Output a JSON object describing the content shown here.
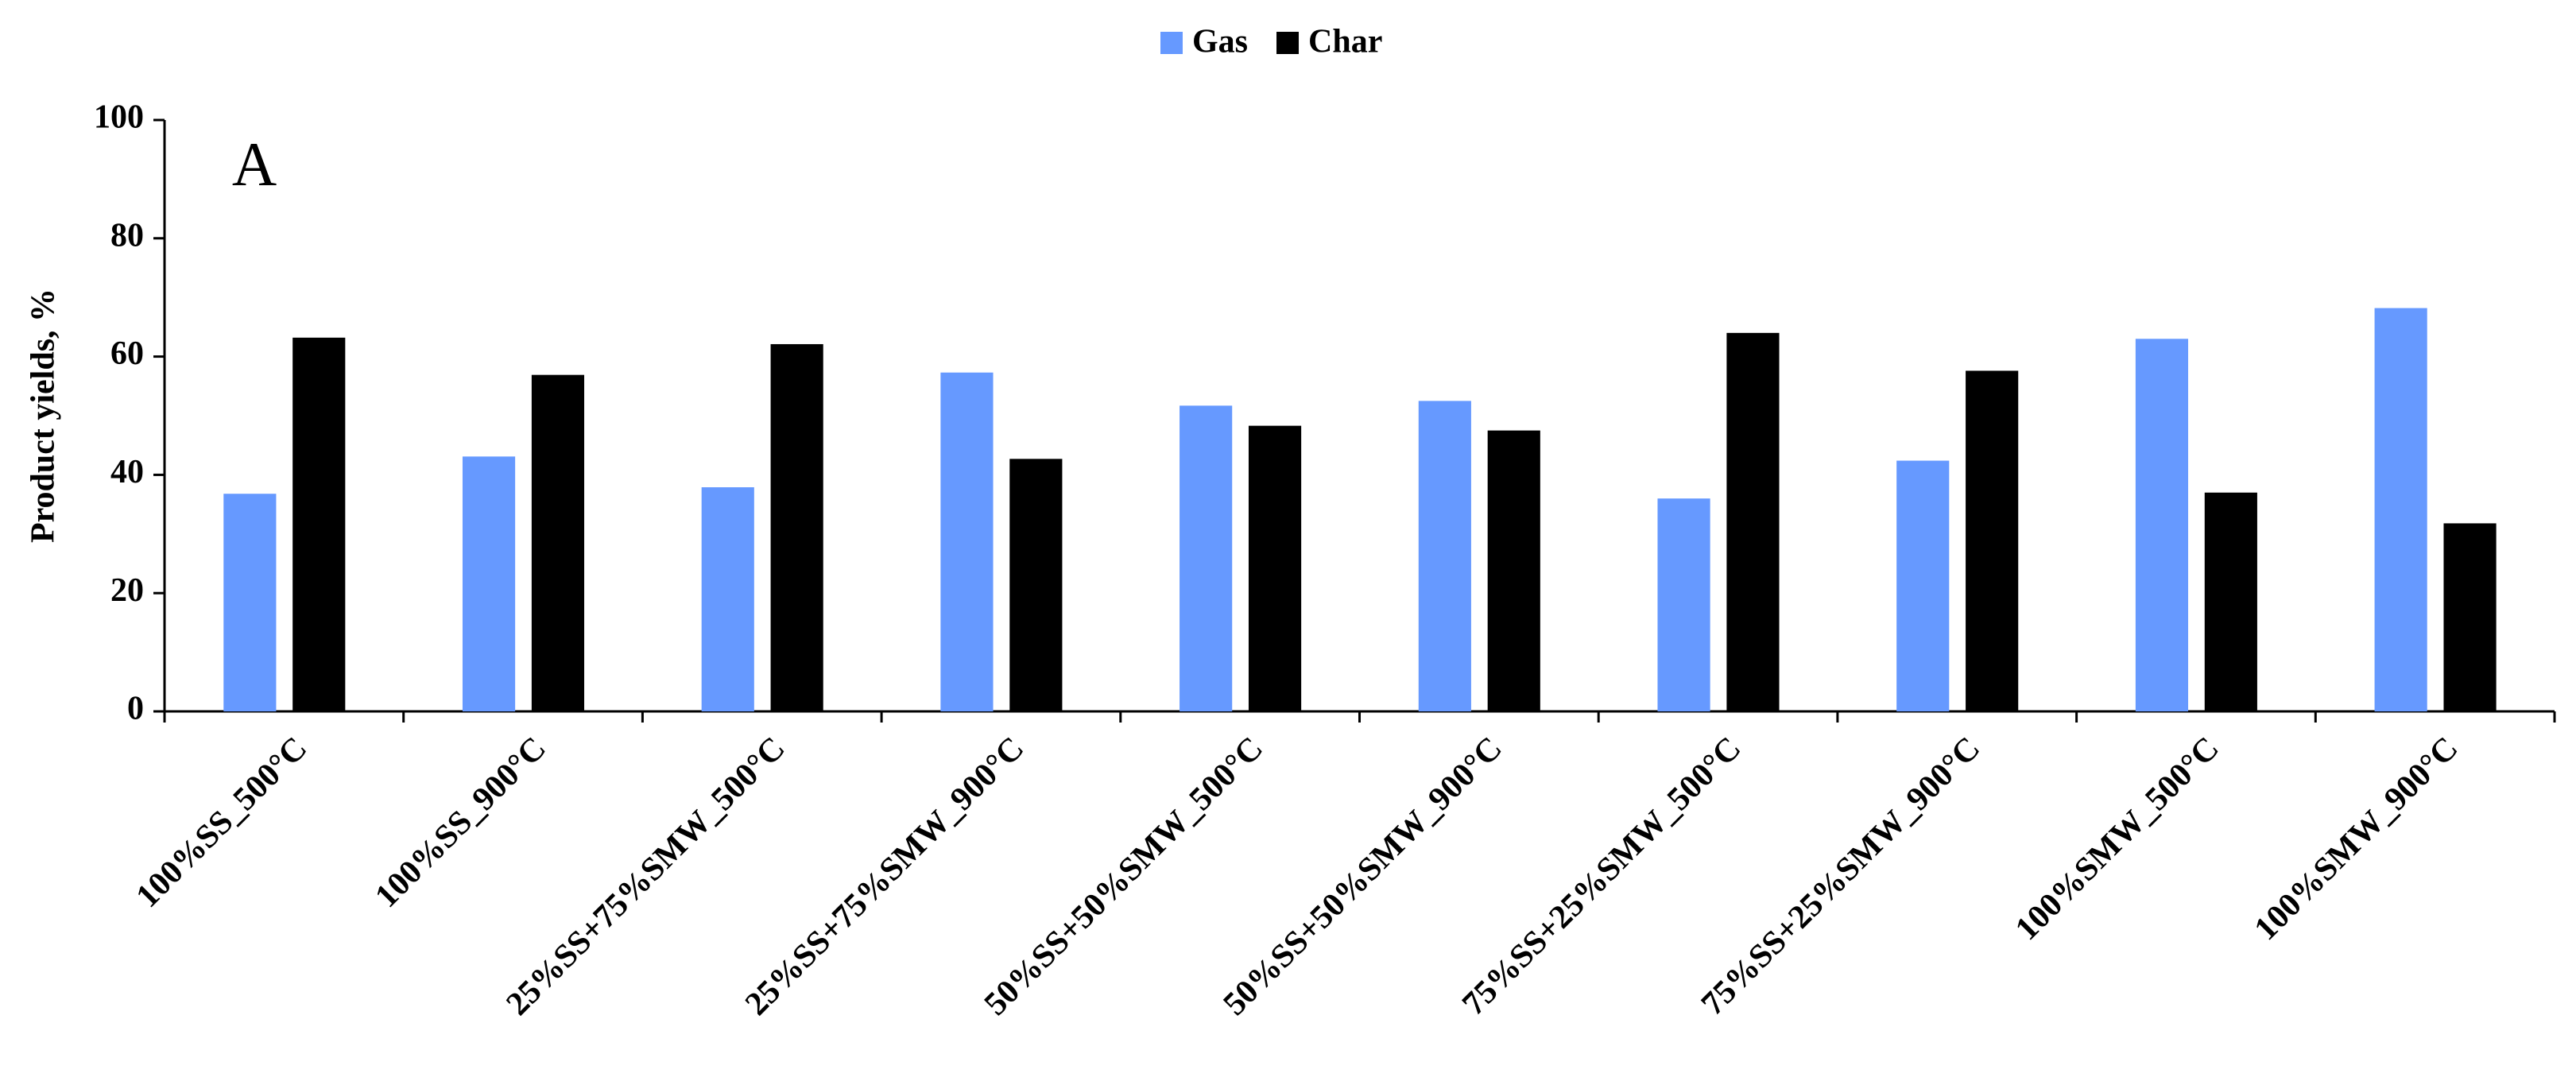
{
  "chart_data": {
    "type": "bar",
    "annotation": "A",
    "y_label": "Product yields, %",
    "categories": [
      "100%SS_500°C",
      "100%SS_900°C",
      "25%SS+75%SMW_500°C",
      "25%SS+75%SMW_900°C",
      "50%SS+50%SMW_500°C",
      "50%SS+50%SMW_900°C",
      "75%SS+25%SMW_500°C",
      "75%SS+25%SMW_900°C",
      "100%SMW_500°C",
      "100%SMW_900°C"
    ],
    "series": [
      {
        "name": "Gas",
        "color": "#6699ff",
        "values": [
          36.8,
          43.1,
          37.9,
          57.3,
          51.7,
          52.5,
          36.0,
          42.4,
          63.0,
          68.2
        ]
      },
      {
        "name": "Char",
        "color": "#000000",
        "values": [
          63.2,
          56.9,
          62.1,
          42.7,
          48.3,
          47.5,
          64.0,
          57.6,
          37.0,
          31.8
        ]
      }
    ],
    "ylim": [
      0,
      100
    ],
    "yticks": [
      0,
      20,
      40,
      60,
      80,
      100
    ],
    "grid": false,
    "legend": "top"
  }
}
